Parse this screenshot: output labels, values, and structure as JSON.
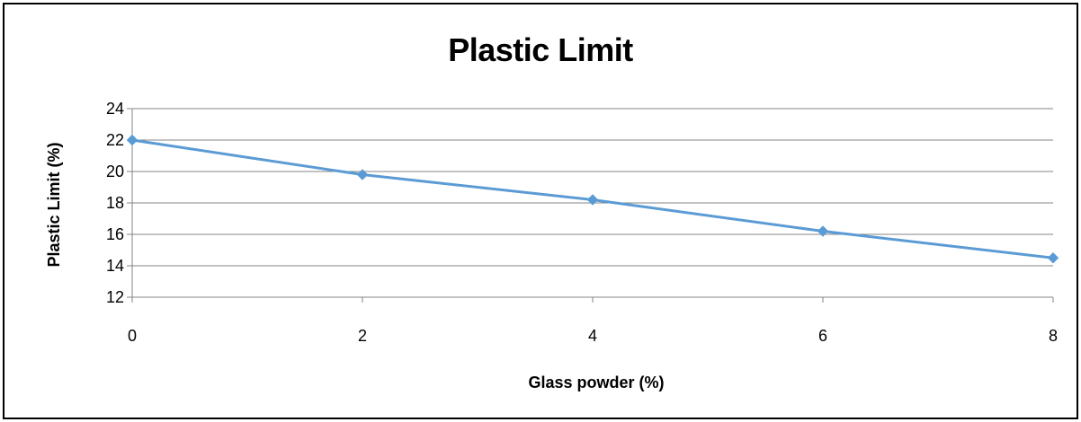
{
  "chart_data": {
    "type": "line",
    "title": "Plastic Limit",
    "xlabel": "Glass powder (%)",
    "ylabel": "Plastic Limit (%)",
    "x": [
      0,
      2,
      4,
      6,
      8
    ],
    "series": [
      {
        "values": [
          22,
          19.8,
          18.2,
          16.2,
          14.5
        ]
      }
    ],
    "xlim": [
      0,
      8
    ],
    "ylim": [
      12,
      24
    ],
    "xticks": [
      "0",
      "2",
      "4",
      "6",
      "8"
    ],
    "yticks": [
      "12",
      "14",
      "16",
      "18",
      "20",
      "22",
      "24"
    ],
    "grid": "horizontal",
    "legend": "none",
    "line_color": "#5b9bd5",
    "grid_color": "#868686",
    "axis_color": "#868686"
  }
}
